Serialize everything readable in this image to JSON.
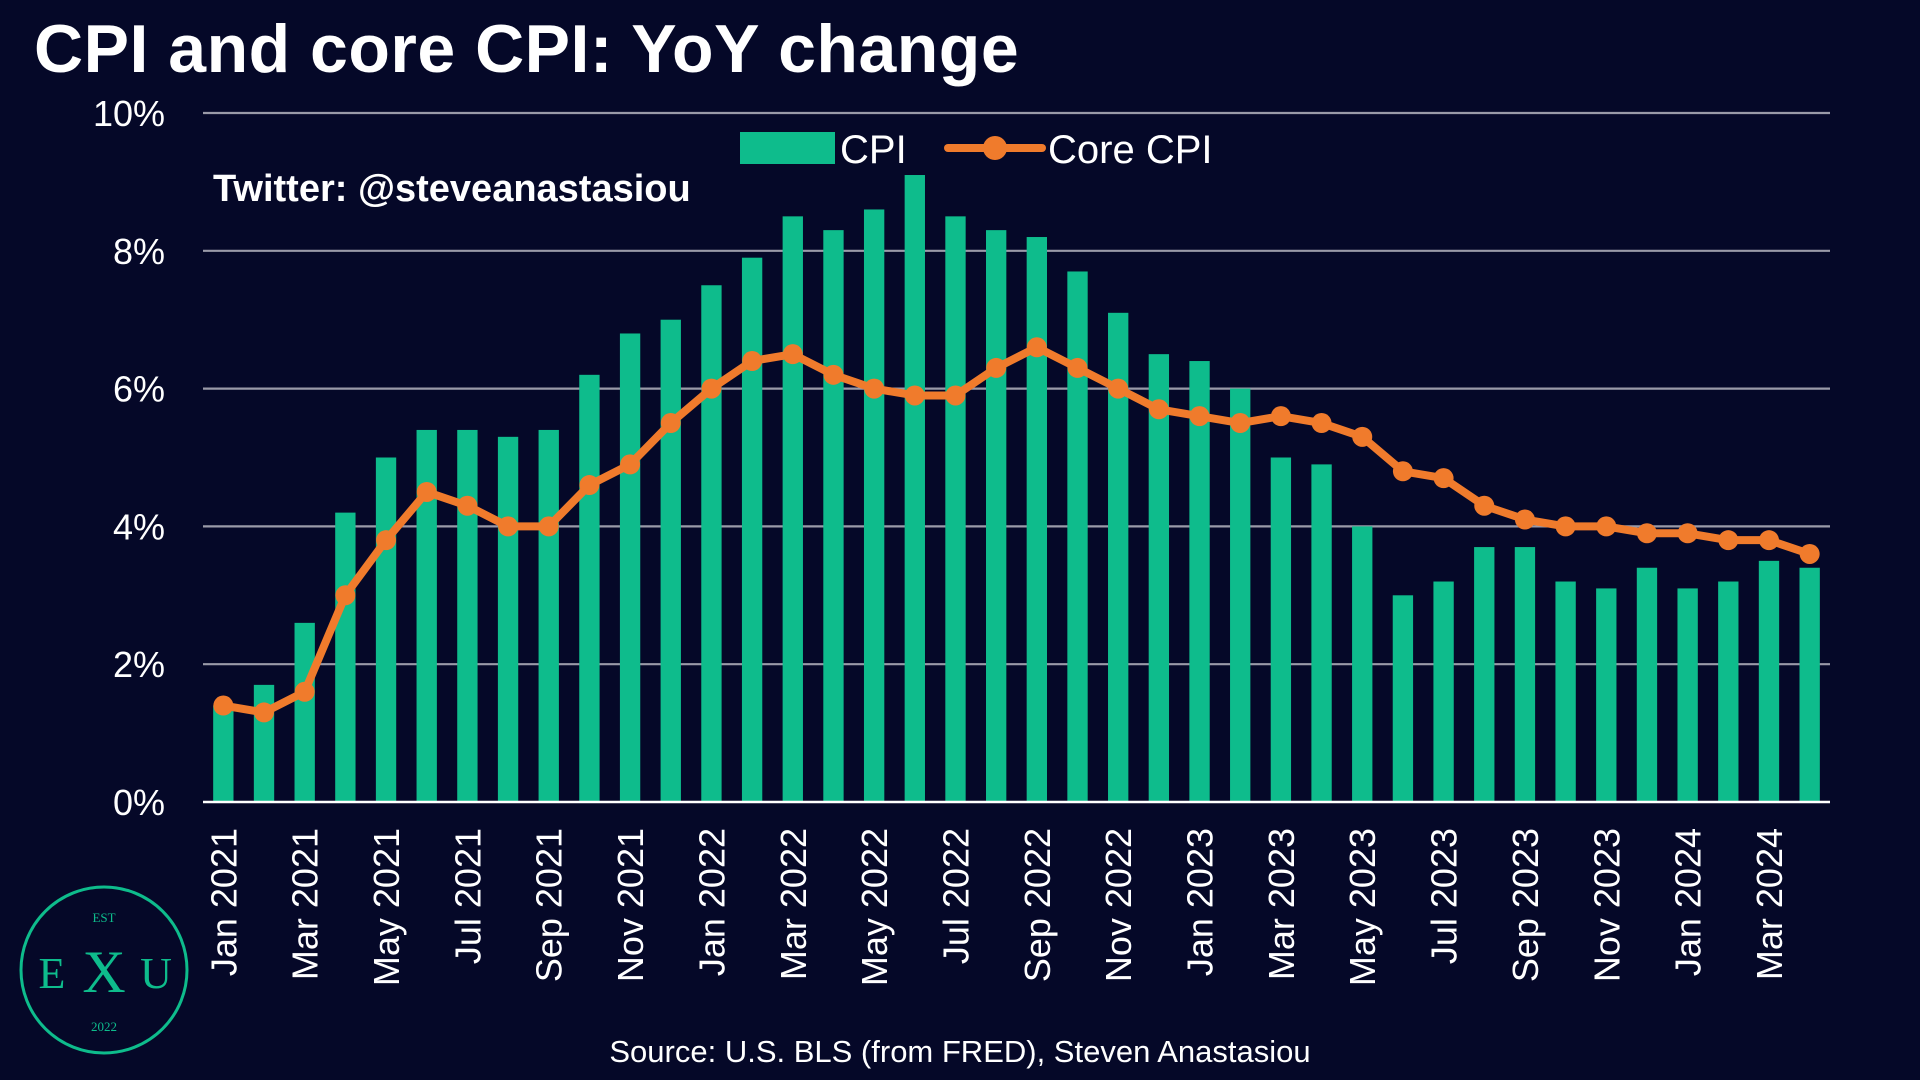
{
  "header": {
    "title": "CPI and core CPI: YoY change"
  },
  "watermark": {
    "twitter": "Twitter: @steveanastasiou"
  },
  "footer": {
    "source": "Source: U.S. BLS (from FRED), Steven Anastasiou"
  },
  "logo": {
    "top": "EST",
    "left": "E",
    "middle": "X",
    "right": "U",
    "bottom": "2022"
  },
  "colors": {
    "background": "#050828",
    "cpi": "#0ebc8c",
    "core_cpi": "#f07b2c",
    "grid": "#9a9aa8",
    "logo": "#0ebc8c"
  },
  "chart_data": {
    "type": "bar",
    "categories": [
      "Jan 2021",
      "Feb 2021",
      "Mar 2021",
      "Apr 2021",
      "May 2021",
      "Jun 2021",
      "Jul 2021",
      "Aug 2021",
      "Sep 2021",
      "Oct 2021",
      "Nov 2021",
      "Dec 2021",
      "Jan 2022",
      "Feb 2022",
      "Mar 2022",
      "Apr 2022",
      "May 2022",
      "Jun 2022",
      "Jul 2022",
      "Aug 2022",
      "Sep 2022",
      "Oct 2022",
      "Nov 2022",
      "Dec 2022",
      "Jan 2023",
      "Feb 2023",
      "Mar 2023",
      "Apr 2023",
      "May 2023",
      "Jun 2023",
      "Jul 2023",
      "Aug 2023",
      "Sep 2023",
      "Oct 2023",
      "Nov 2023",
      "Dec 2023",
      "Jan 2024",
      "Feb 2024",
      "Mar 2024",
      "Apr 2024"
    ],
    "tick_labels": [
      "Jan 2021",
      "",
      "Mar 2021",
      "",
      "May 2021",
      "",
      "Jul 2021",
      "",
      "Sep 2021",
      "",
      "Nov 2021",
      "",
      "Jan 2022",
      "",
      "Mar 2022",
      "",
      "May 2022",
      "",
      "Jul 2022",
      "",
      "Sep 2022",
      "",
      "Nov 2022",
      "",
      "Jan 2023",
      "",
      "Mar 2023",
      "",
      "May 2023",
      "",
      "Jul 2023",
      "",
      "Sep 2023",
      "",
      "Nov 2023",
      "",
      "Jan 2024",
      "",
      "Mar 2024",
      ""
    ],
    "series": [
      {
        "name": "CPI",
        "type": "bar",
        "values": [
          1.4,
          1.7,
          2.6,
          4.2,
          5.0,
          5.4,
          5.4,
          5.3,
          5.4,
          6.2,
          6.8,
          7.0,
          7.5,
          7.9,
          8.5,
          8.3,
          8.6,
          9.1,
          8.5,
          8.3,
          8.2,
          7.7,
          7.1,
          6.5,
          6.4,
          6.0,
          5.0,
          4.9,
          4.0,
          3.0,
          3.2,
          3.7,
          3.7,
          3.2,
          3.1,
          3.4,
          3.1,
          3.2,
          3.5,
          3.4
        ]
      },
      {
        "name": "Core CPI",
        "type": "line",
        "values": [
          1.4,
          1.3,
          1.6,
          3.0,
          3.8,
          4.5,
          4.3,
          4.0,
          4.0,
          4.6,
          4.9,
          5.5,
          6.0,
          6.4,
          6.5,
          6.2,
          6.0,
          5.9,
          5.9,
          6.3,
          6.6,
          6.3,
          6.0,
          5.7,
          5.6,
          5.5,
          5.6,
          5.5,
          5.3,
          4.8,
          4.7,
          4.3,
          4.1,
          4.0,
          4.0,
          3.9,
          3.9,
          3.8,
          3.8,
          3.6
        ]
      }
    ],
    "yticks": [
      "0%",
      "2%",
      "4%",
      "6%",
      "8%",
      "10%"
    ],
    "ylim": [
      0,
      10
    ],
    "grid": true,
    "legend_position": "top-center"
  }
}
